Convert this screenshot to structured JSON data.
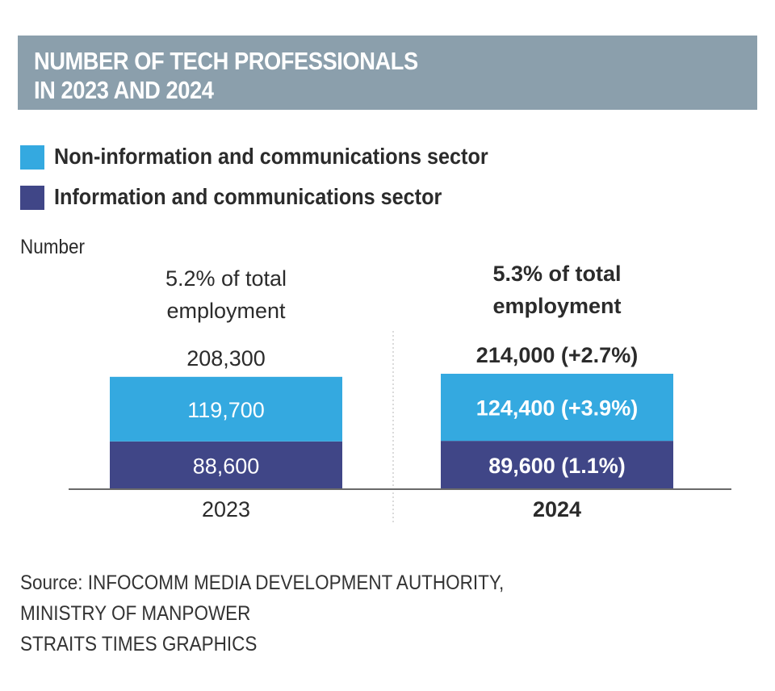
{
  "title_lines": [
    "NUMBER OF TECH PROFESSIONALS",
    "IN 2023 AND 2024"
  ],
  "colors": {
    "header_bg": "#8b9fac",
    "non_ict": "#34a9e0",
    "ict": "#404687",
    "axis": "#6a6a6a"
  },
  "legend": [
    {
      "label": "Non-information and communications sector",
      "color": "#34a9e0"
    },
    {
      "label": "Information and communications sector",
      "color": "#404687"
    }
  ],
  "unit_label": "Number",
  "chart_data": {
    "type": "bar",
    "stacked": true,
    "title": "NUMBER OF TECH PROFESSIONALS IN 2023 AND 2024",
    "ylabel": "Number",
    "categories": [
      "2023",
      "2024"
    ],
    "series": [
      {
        "name": "Information and communications sector",
        "values": [
          88600,
          89600
        ],
        "labels": [
          "88,600",
          "89,600 (1.1%)"
        ]
      },
      {
        "name": "Non-information and communications sector",
        "values": [
          119700,
          124400
        ],
        "labels": [
          "119,700",
          "124,400 (+3.9%)"
        ]
      }
    ],
    "totals": [
      208300,
      214000
    ],
    "total_labels": [
      "208,300",
      "214,000 (+2.7%)"
    ],
    "share_labels": [
      [
        "5.2% of total",
        "employment"
      ],
      [
        "5.3% of total",
        "employment"
      ]
    ],
    "bold_category": [
      false,
      true
    ],
    "legend_position": "top-left",
    "grid": false
  },
  "source_lines": [
    "Source: INFOCOMM MEDIA DEVELOPMENT AUTHORITY,",
    "MINISTRY OF MANPOWER",
    "STRAITS TIMES GRAPHICS"
  ]
}
